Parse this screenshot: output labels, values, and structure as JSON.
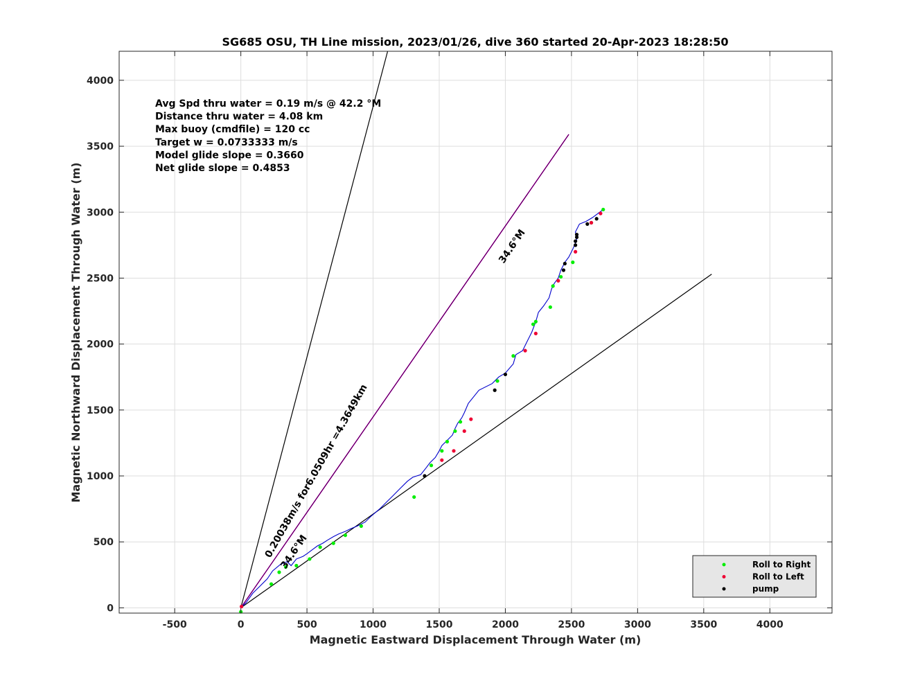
{
  "chart_data": {
    "type": "line",
    "title": "SG685 OSU, TH Line mission, 2023/01/26, dive 360 started 20-Apr-2023 18:28:50",
    "xlabel": "Magnetic Eastward Displacement Through Water (m)",
    "ylabel": "Magnetic Northward Displacement Through Water (m)",
    "xlim": [
      -920,
      4470
    ],
    "ylim": [
      -40,
      4220
    ],
    "xticks": [
      -500,
      0,
      500,
      1000,
      1500,
      2000,
      2500,
      3000,
      3500,
      4000
    ],
    "yticks": [
      0,
      500,
      1000,
      1500,
      2000,
      2500,
      3000,
      3500,
      4000
    ],
    "grid": true,
    "legend_position": "bottom-right",
    "colors": {
      "track": "#0000cc",
      "roll_right": "#00ee00",
      "roll_left": "#ee0033",
      "pump": "#000000",
      "heading_line": "#cc00cc",
      "bound_line": "#000000",
      "grid": "#dddddd",
      "legend_bg": "#e6e6e6"
    },
    "stats_text": [
      "Avg Spd thru water  =  0.19 m/s @  42.2 °M",
      "Distance thru water =  4.08 km",
      "Max buoy (cmdfile)  = 120 cc",
      "Target w                   = 0.0733333 m/s",
      "Model glide slope    = 0.3660",
      "Net glide slope         = 0.4853"
    ],
    "annotations": {
      "heading_top": "34.6°M",
      "heading_bottom": "34.6°M",
      "speed": "0.20038m/s for6.0509hr =4.3649km"
    },
    "lines": {
      "heading": [
        [
          0,
          0
        ],
        [
          2480,
          3590
        ]
      ],
      "upper_bound": [
        [
          0,
          0
        ],
        [
          1110,
          4220
        ]
      ],
      "lower_bound": [
        [
          0,
          0
        ],
        [
          3560,
          2530
        ]
      ]
    },
    "series": [
      {
        "name": "track",
        "x": [
          0,
          40,
          90,
          150,
          200,
          240,
          300,
          350,
          380,
          420,
          470,
          500,
          540,
          580,
          620,
          650,
          700,
          740,
          790,
          830,
          880,
          940,
          980,
          1050,
          1100,
          1150,
          1200,
          1260,
          1300,
          1360,
          1400,
          1430,
          1470,
          1500,
          1520,
          1560,
          1600,
          1620,
          1640,
          1670,
          1690,
          1720,
          1800,
          1900,
          1950,
          2000,
          2060,
          2080,
          2130,
          2170,
          2200,
          2230,
          2250,
          2290,
          2330,
          2350,
          2370,
          2400,
          2420,
          2450,
          2480,
          2510,
          2540,
          2530,
          2560,
          2610,
          2660,
          2700,
          2740
        ],
        "y": [
          0,
          40,
          110,
          170,
          220,
          280,
          330,
          350,
          320,
          370,
          390,
          410,
          440,
          470,
          490,
          510,
          540,
          560,
          580,
          600,
          620,
          650,
          690,
          750,
          800,
          850,
          900,
          960,
          990,
          1010,
          1060,
          1100,
          1140,
          1190,
          1230,
          1270,
          1310,
          1360,
          1400,
          1440,
          1480,
          1550,
          1650,
          1700,
          1750,
          1780,
          1850,
          1920,
          1950,
          2030,
          2090,
          2170,
          2240,
          2290,
          2350,
          2420,
          2460,
          2500,
          2560,
          2620,
          2660,
          2720,
          2790,
          2850,
          2910,
          2930,
          2960,
          2990,
          3020
        ]
      },
      {
        "name": "Roll to Right",
        "x": [
          0,
          230,
          290,
          340,
          420,
          520,
          600,
          700,
          790,
          910,
          1310,
          1440,
          1520,
          1560,
          1620,
          1660,
          1940,
          2060,
          2210,
          2230,
          2340,
          2360,
          2420,
          2510,
          2650,
          2740
        ],
        "y": [
          -30,
          180,
          270,
          310,
          320,
          370,
          460,
          490,
          550,
          620,
          840,
          1080,
          1190,
          1260,
          1340,
          1410,
          1720,
          1910,
          2150,
          2170,
          2280,
          2440,
          2510,
          2620,
          2920,
          3020
        ]
      },
      {
        "name": "Roll to Left",
        "x": [
          5,
          1520,
          1610,
          1690,
          1740,
          2150,
          2230,
          2400,
          2530,
          2650,
          2720
        ],
        "y": [
          10,
          1120,
          1190,
          1340,
          1430,
          1950,
          2080,
          2480,
          2700,
          2920,
          2990
        ]
      },
      {
        "name": "pump",
        "x": [
          1390,
          1920,
          2000,
          2440,
          2450,
          2530,
          2530,
          2540,
          2540,
          2620,
          2690
        ],
        "y": [
          1000,
          1650,
          1770,
          2560,
          2610,
          2750,
          2780,
          2810,
          2830,
          2910,
          2950
        ]
      }
    ],
    "legend": [
      "Roll to Right",
      "Roll to Left",
      "pump"
    ]
  }
}
